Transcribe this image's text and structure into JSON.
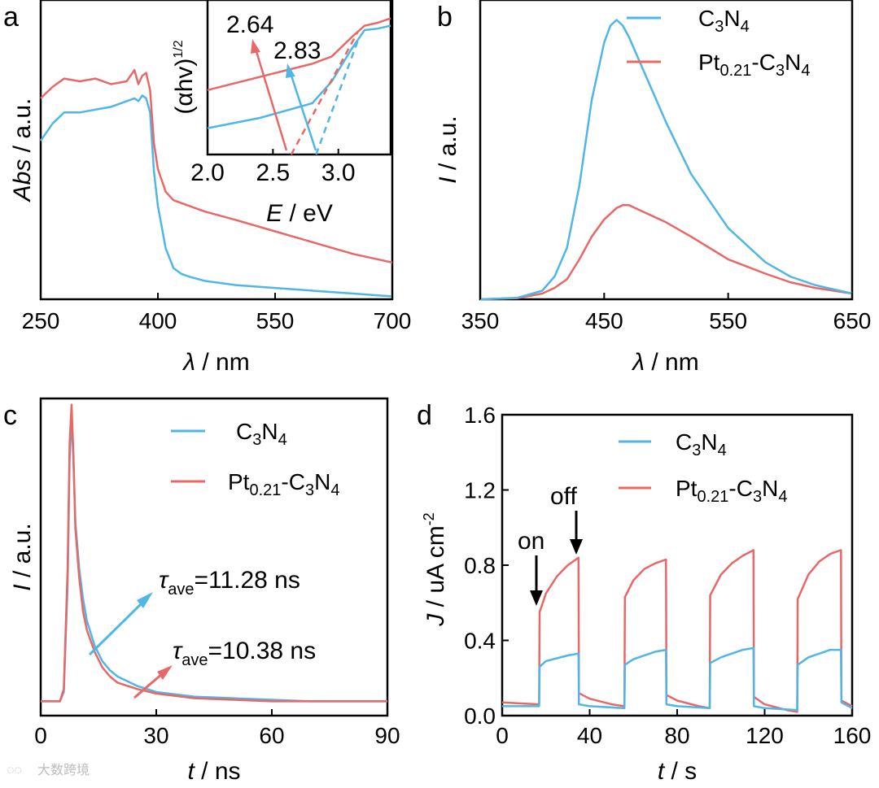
{
  "watermark": "大数跨境",
  "colors": {
    "c3n4": "#4fb6e6",
    "pt": "#e86767"
  },
  "chart_data": [
    {
      "panel": "a",
      "type": "line",
      "xlabel_sym": "λ",
      "xlabel_unit": " / nm",
      "ylabel_sym": "Abs",
      "ylabel_unit": " / a.u.",
      "xlim": [
        250,
        700
      ],
      "xticks": [
        "250",
        "400",
        "550",
        "700"
      ],
      "ylim": [
        0,
        1
      ],
      "series": [
        {
          "name": "C3N4",
          "x": [
            250,
            265,
            280,
            300,
            320,
            340,
            360,
            370,
            375,
            380,
            385,
            390,
            395,
            400,
            410,
            420,
            430,
            440,
            460,
            500,
            550,
            600,
            650,
            700
          ],
          "y": [
            0.56,
            0.62,
            0.66,
            0.66,
            0.67,
            0.68,
            0.7,
            0.71,
            0.7,
            0.72,
            0.71,
            0.66,
            0.45,
            0.33,
            0.18,
            0.11,
            0.09,
            0.08,
            0.065,
            0.05,
            0.04,
            0.03,
            0.02,
            0.01
          ]
        },
        {
          "name": "Pt0.21-C3N4",
          "x": [
            250,
            265,
            280,
            300,
            320,
            340,
            360,
            370,
            375,
            380,
            385,
            390,
            395,
            400,
            410,
            420,
            430,
            440,
            460,
            500,
            550,
            600,
            650,
            700
          ],
          "y": [
            0.71,
            0.75,
            0.78,
            0.77,
            0.78,
            0.76,
            0.77,
            0.81,
            0.76,
            0.79,
            0.8,
            0.74,
            0.55,
            0.46,
            0.38,
            0.35,
            0.34,
            0.33,
            0.31,
            0.28,
            0.24,
            0.2,
            0.16,
            0.13
          ]
        }
      ],
      "inset": {
        "xlabel_sym": "E",
        "xlabel_unit": " / eV",
        "ylabel": "(αhv)",
        "ylabel_exp": "1/2",
        "xlim": [
          2.0,
          3.4
        ],
        "xticks": [
          "2.0",
          "2.5",
          "3.0"
        ],
        "annotations": [
          "2.64",
          "2.83"
        ],
        "band_gaps": [
          2.64,
          2.83
        ],
        "series": [
          {
            "name": "C3N4",
            "x": [
              2.0,
              2.4,
              2.8,
              2.95,
              3.1,
              3.2,
              3.3,
              3.4
            ],
            "y": [
              0.18,
              0.25,
              0.35,
              0.5,
              0.72,
              0.85,
              0.86,
              0.88
            ]
          },
          {
            "name": "Pt0.21-C3N4",
            "x": [
              2.0,
              2.4,
              2.8,
              2.95,
              3.1,
              3.2,
              3.3,
              3.4
            ],
            "y": [
              0.44,
              0.53,
              0.62,
              0.67,
              0.8,
              0.88,
              0.9,
              0.93
            ]
          }
        ]
      }
    },
    {
      "panel": "b",
      "type": "line",
      "xlabel_sym": "λ",
      "xlabel_unit": " / nm",
      "ylabel_sym": "I",
      "ylabel_unit": " / a.u.",
      "xlim": [
        350,
        650
      ],
      "xticks": [
        "350",
        "450",
        "550",
        "650"
      ],
      "ylim": [
        0,
        1.05
      ],
      "legend": [
        "C3N4",
        "Pt0.21-C3N4"
      ],
      "series": [
        {
          "name": "C3N4",
          "x": [
            350,
            380,
            400,
            410,
            420,
            430,
            440,
            450,
            455,
            460,
            465,
            470,
            480,
            500,
            520,
            550,
            580,
            600,
            620,
            650
          ],
          "y": [
            0.0,
            0.005,
            0.03,
            0.08,
            0.18,
            0.4,
            0.7,
            0.9,
            0.96,
            0.98,
            0.96,
            0.92,
            0.82,
            0.62,
            0.44,
            0.25,
            0.13,
            0.08,
            0.05,
            0.02
          ]
        },
        {
          "name": "Pt0.21-C3N4",
          "x": [
            350,
            380,
            400,
            410,
            420,
            430,
            440,
            450,
            460,
            465,
            470,
            480,
            500,
            520,
            550,
            580,
            600,
            620,
            650
          ],
          "y": [
            0.0,
            0.004,
            0.02,
            0.04,
            0.07,
            0.14,
            0.22,
            0.28,
            0.32,
            0.33,
            0.33,
            0.31,
            0.27,
            0.22,
            0.14,
            0.09,
            0.06,
            0.04,
            0.02
          ]
        }
      ]
    },
    {
      "panel": "c",
      "type": "line",
      "xlabel_sym": "t",
      "xlabel_unit": " / ns",
      "ylabel_sym": "I",
      "ylabel_unit": " / a.u.",
      "xlim": [
        0,
        90
      ],
      "xticks": [
        "0",
        "30",
        "60",
        "90"
      ],
      "ylim": [
        0,
        1.0
      ],
      "legend": [
        "C3N4",
        "Pt0.21-C3N4"
      ],
      "annotations": [
        {
          "sym": "τ",
          "sub": "ave",
          "text": "=11.28 ns"
        },
        {
          "sym": "τ",
          "sub": "ave",
          "text": "=10.38 ns"
        }
      ],
      "lifetimes_ns": [
        11.28,
        10.38
      ],
      "series": [
        {
          "name": "C3N4",
          "x": [
            0,
            5,
            6,
            7,
            7.5,
            8,
            8.5,
            9,
            10,
            11,
            12,
            14,
            16,
            18,
            20,
            25,
            30,
            40,
            50,
            60,
            70,
            80,
            90
          ],
          "y": [
            0.02,
            0.02,
            0.05,
            0.4,
            0.8,
            0.94,
            0.8,
            0.6,
            0.45,
            0.35,
            0.28,
            0.2,
            0.15,
            0.12,
            0.1,
            0.07,
            0.05,
            0.035,
            0.03,
            0.025,
            0.02,
            0.02,
            0.02
          ]
        },
        {
          "name": "Pt0.21-C3N4",
          "x": [
            0,
            5,
            6,
            7,
            7.5,
            8,
            8.5,
            9,
            10,
            11,
            12,
            14,
            16,
            18,
            20,
            25,
            30,
            40,
            50,
            60,
            70,
            80,
            90
          ],
          "y": [
            0.02,
            0.02,
            0.06,
            0.45,
            0.85,
            0.98,
            0.82,
            0.58,
            0.42,
            0.31,
            0.25,
            0.18,
            0.13,
            0.1,
            0.08,
            0.06,
            0.045,
            0.03,
            0.025,
            0.02,
            0.02,
            0.02,
            0.02
          ]
        }
      ]
    },
    {
      "panel": "d",
      "type": "line",
      "xlabel_sym": "t",
      "xlabel_unit": " / s",
      "ylabel_sym": "J",
      "ylabel_unit": " / uA cm",
      "ylabel_exp": "-2",
      "xlim": [
        0,
        160
      ],
      "ylim": [
        0.0,
        1.6
      ],
      "xticks": [
        "0",
        "40",
        "80",
        "120",
        "160"
      ],
      "yticks": [
        "0.0",
        "0.4",
        "0.8",
        "1.2",
        "1.6"
      ],
      "legend": [
        "C3N4",
        "Pt0.21-C3N4"
      ],
      "annotations": [
        "on",
        "off"
      ],
      "light_on_off_s": [
        [
          17,
          35
        ],
        [
          56,
          75
        ],
        [
          95,
          115
        ],
        [
          135,
          155
        ]
      ],
      "series": [
        {
          "name": "C3N4",
          "x": [
            0,
            16.9,
            17.1,
            20,
            30,
            34.9,
            35.1,
            40,
            55.9,
            56.1,
            60,
            70,
            74.9,
            75.1,
            80,
            94.9,
            95.1,
            100,
            110,
            114.9,
            115.1,
            120,
            134.9,
            135.1,
            140,
            150,
            154.9,
            155.1,
            160
          ],
          "y": [
            0.05,
            0.05,
            0.26,
            0.29,
            0.32,
            0.33,
            0.06,
            0.05,
            0.04,
            0.27,
            0.3,
            0.34,
            0.35,
            0.06,
            0.05,
            0.04,
            0.28,
            0.31,
            0.35,
            0.36,
            0.05,
            0.04,
            0.03,
            0.27,
            0.31,
            0.35,
            0.35,
            0.07,
            0.04
          ]
        },
        {
          "name": "Pt0.21-C3N4",
          "x": [
            0,
            16.9,
            17.1,
            20,
            25,
            30,
            34.9,
            35.1,
            40,
            50,
            55.9,
            56.1,
            60,
            65,
            70,
            74.9,
            75.1,
            80,
            90,
            94.9,
            95.1,
            100,
            105,
            110,
            114.9,
            115.1,
            120,
            130,
            134.9,
            135.1,
            140,
            145,
            150,
            154.9,
            155.1,
            160
          ],
          "y": [
            0.07,
            0.06,
            0.55,
            0.65,
            0.74,
            0.8,
            0.84,
            0.12,
            0.09,
            0.06,
            0.05,
            0.63,
            0.72,
            0.78,
            0.81,
            0.83,
            0.11,
            0.08,
            0.05,
            0.04,
            0.64,
            0.75,
            0.81,
            0.85,
            0.88,
            0.1,
            0.06,
            0.03,
            0.02,
            0.62,
            0.75,
            0.82,
            0.86,
            0.88,
            0.08,
            0.05
          ]
        }
      ]
    }
  ],
  "legend_text": {
    "c3n4": {
      "main": "C",
      "sub1": "3",
      "mid": "N",
      "sub2": "4"
    },
    "pt": {
      "main": "Pt",
      "sub0": "0.21",
      "rest": "-C",
      "sub1": "3",
      "mid": "N",
      "sub2": "4"
    }
  }
}
